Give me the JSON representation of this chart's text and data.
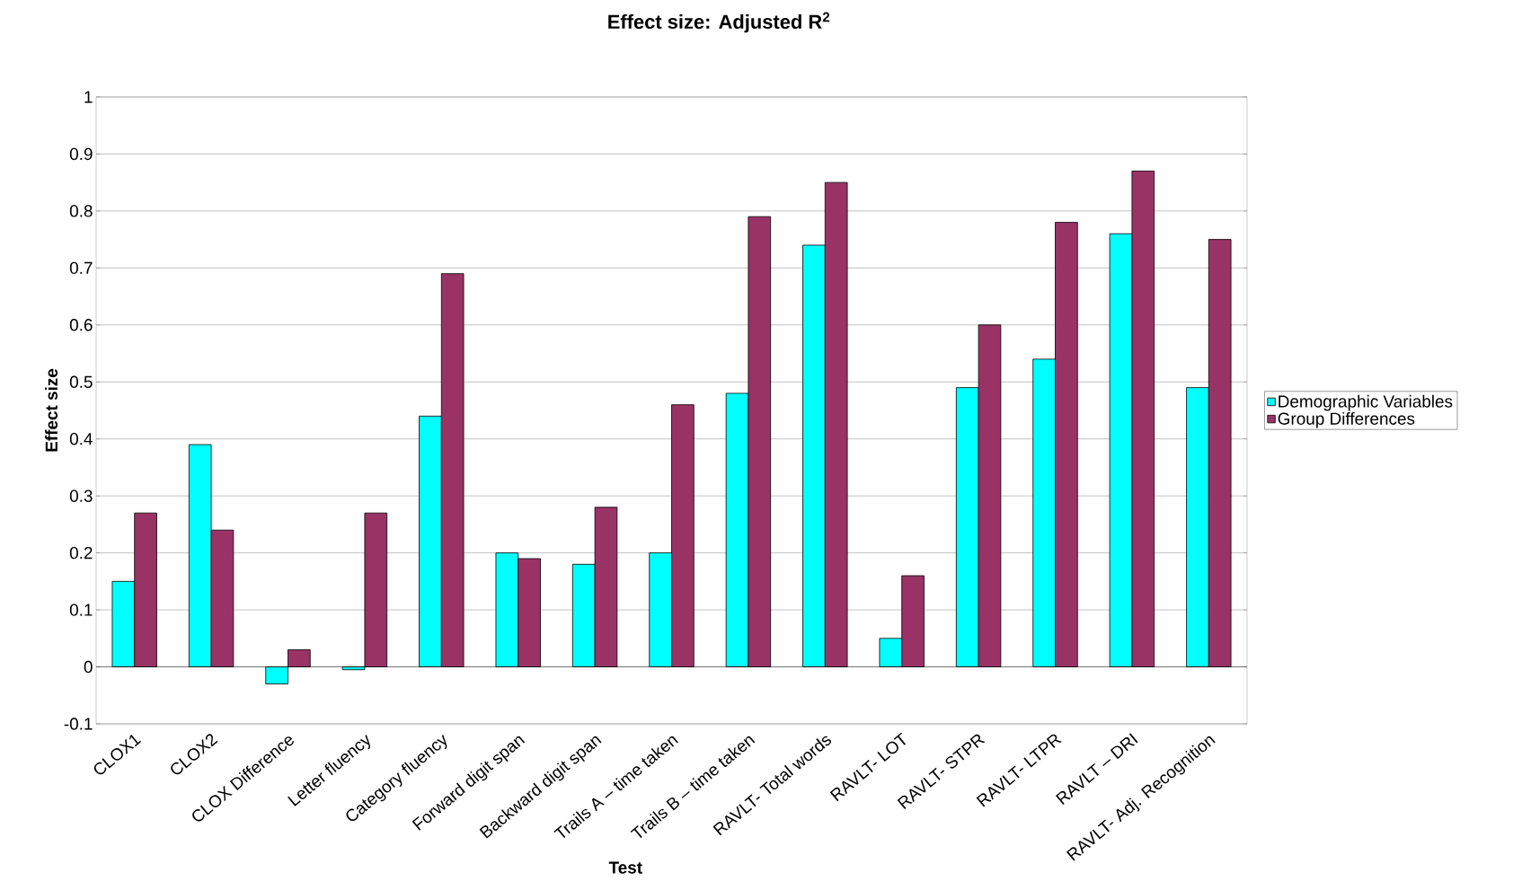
{
  "chart_data": {
    "type": "bar",
    "title": "Effect size: Adjusted R$^{2}$",
    "xlabel": "Test",
    "ylabel": "Effect size",
    "categories": [
      "CLOX1",
      "CLOX2",
      "CLOX Difference",
      "Letter fluency",
      "Category fluency",
      "Forward digit span",
      "Backward digit span",
      "Trails A – time taken",
      "Trails B – time taken",
      "RAVLT- Total words",
      "RAVLT- LOT",
      "RAVLT- STPR",
      "RAVLT- LTPR",
      "RAVLT – DRI",
      "RAVLT- Adj. Recognition"
    ],
    "series": [
      {
        "name": "Demographic Variables",
        "color": "#00ffff",
        "values": [
          0.15,
          0.39,
          -0.03,
          -0.005,
          0.44,
          0.2,
          0.18,
          0.2,
          0.48,
          0.74,
          0.05,
          0.49,
          0.54,
          0.76,
          0.49
        ]
      },
      {
        "name": "Group Differences",
        "color": "#993366",
        "values": [
          0.27,
          0.24,
          0.03,
          0.27,
          0.69,
          0.19,
          0.28,
          0.46,
          0.79,
          0.85,
          0.16,
          0.6,
          0.78,
          0.87,
          0.75
        ]
      }
    ],
    "ylim": [
      -0.1,
      1
    ],
    "yticks": [
      -0.1,
      0,
      0.1,
      0.2,
      0.3,
      0.4,
      0.5,
      0.6,
      0.7,
      0.8,
      0.9,
      1
    ],
    "grid": "y",
    "legend": "right"
  }
}
